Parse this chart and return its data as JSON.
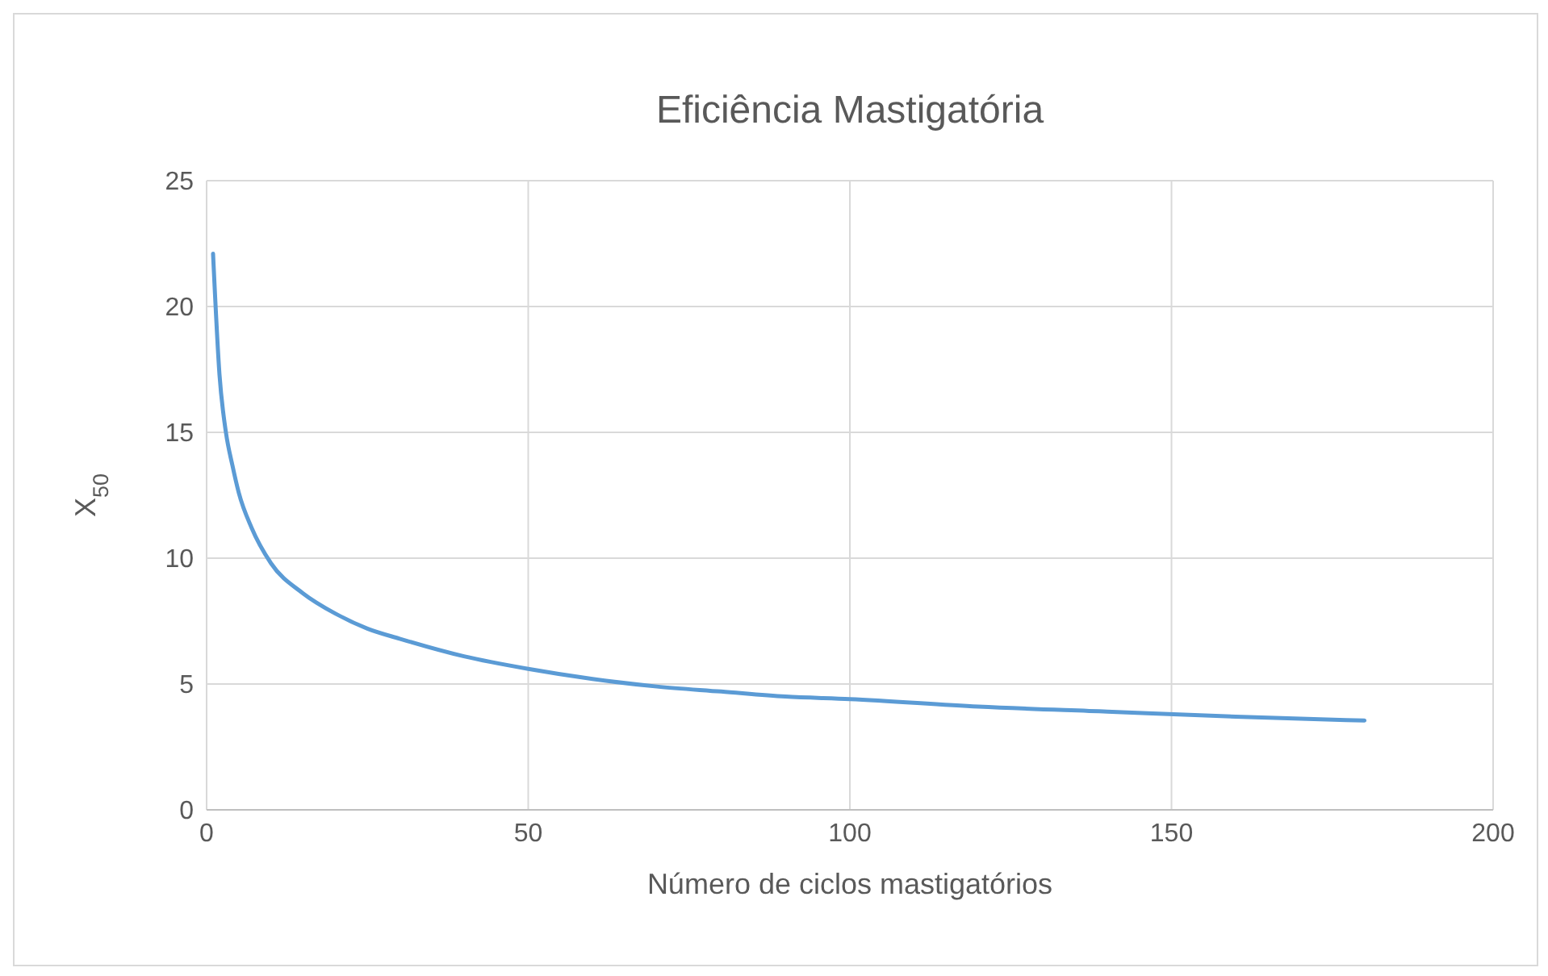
{
  "chart_data": {
    "type": "line",
    "title": "Eficiência Mastigatória",
    "xlabel": "Número de ciclos mastigatórios",
    "ylabel": "X$_{50}$",
    "x": [
      1,
      2,
      3,
      4,
      5,
      7,
      10,
      15,
      20,
      25,
      30,
      40,
      50,
      60,
      70,
      80,
      90,
      100,
      120,
      140,
      160,
      180
    ],
    "series": [
      {
        "color": "#5b9bd5",
        "values": [
          22.1,
          17.3,
          15,
          13.7,
          12.6,
          11.2,
          9.8,
          8.6,
          7.8,
          7.2,
          6.8,
          6.1,
          5.6,
          5.2,
          4.9,
          4.7,
          4.5,
          4.4,
          4.1,
          3.9,
          3.7,
          3.55
        ]
      }
    ],
    "xlim": [
      0,
      200
    ],
    "xticks": [
      0,
      50,
      100,
      150,
      200
    ],
    "ylim": [
      0,
      25
    ],
    "yticks": [
      0,
      5,
      10,
      15,
      20,
      25
    ],
    "grid": true,
    "marker": "none",
    "line_style": "solid"
  }
}
